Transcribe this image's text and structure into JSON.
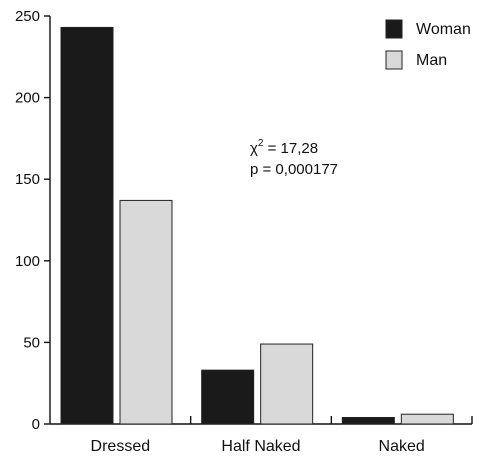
{
  "chart_data": {
    "type": "bar",
    "categories": [
      "Dressed",
      "Half Naked",
      "Naked"
    ],
    "series": [
      {
        "name": "Woman",
        "values": [
          243,
          33,
          4
        ],
        "color": "#1a1a1a"
      },
      {
        "name": "Man",
        "values": [
          137,
          49,
          6
        ],
        "color": "#d9d9d9"
      }
    ],
    "title": "",
    "xlabel": "",
    "ylabel": "",
    "ylim": [
      0,
      250
    ],
    "yticks": [
      "0",
      "50",
      "100",
      "150",
      "200",
      "250"
    ],
    "legend": "top-right",
    "grid": false,
    "annotation": {
      "chi_symbol": "χ",
      "chi_superscript": "2",
      "chi_value": " = 17,28",
      "p_line": "p = 0,000177"
    }
  }
}
